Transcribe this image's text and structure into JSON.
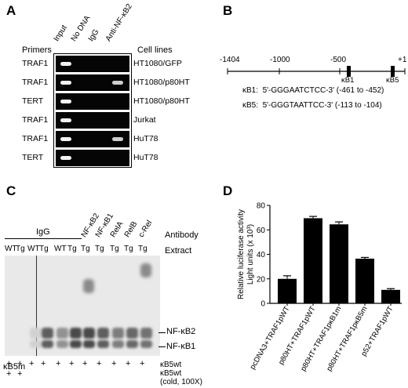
{
  "panels": {
    "A": {
      "label": "A",
      "primers_header": "Primers",
      "cell_lines_header": "Cell lines",
      "columns": [
        "Input",
        "No DNA",
        "IgG",
        "Anti-NF-κB2"
      ],
      "rows": [
        {
          "primer": "TRAF1",
          "cell_line": "HT1080/GFP",
          "bands": [
            1,
            0,
            0,
            0
          ]
        },
        {
          "primer": "TRAF1",
          "cell_line": "HT1080/p80HT",
          "bands": [
            1,
            0,
            0,
            1
          ]
        },
        {
          "primer": "TERT",
          "cell_line": "HT1080/p80HT",
          "bands": [
            1,
            0,
            0,
            0
          ]
        },
        {
          "primer": "TRAF1",
          "cell_line": "Jurkat",
          "bands": [
            1,
            0,
            0,
            0
          ]
        },
        {
          "primer": "TRAF1",
          "cell_line": "HuT78",
          "bands": [
            1,
            0,
            0,
            1
          ]
        },
        {
          "primer": "TERT",
          "cell_line": "HuT78",
          "bands": [
            1,
            0,
            0,
            0
          ]
        }
      ]
    },
    "B": {
      "label": "B",
      "ticks": [
        "-1404",
        "-1000",
        "-500",
        "+1"
      ],
      "sites": [
        "κB1",
        "κB5"
      ],
      "seq1": "κB1:  5'-GGGAATCTCC-3' (-461 to -452)",
      "seq2": "κB5:  5'-GGGTAATTCC-3' (-113 to -104)"
    },
    "C": {
      "label": "C",
      "antibody_header": "Antibody",
      "extract_header": "Extract",
      "igg_label": "IgG",
      "antibodies": [
        "NF-κB2",
        "NF-κB1",
        "RelA",
        "RelB",
        "c-Rel"
      ],
      "extracts": [
        "WT",
        "Tg",
        "WT",
        "Tg",
        "WT",
        "Tg",
        "Tg",
        "Tg",
        "Tg",
        "Tg",
        "Tg"
      ],
      "bands": [
        "NF-κB2",
        "NF-κB1"
      ],
      "row1_label": "κB5m",
      "row1_marks": [
        "+",
        "+",
        "+",
        "+",
        "+",
        "+",
        "+",
        "+",
        "+",
        "+",
        "+"
      ],
      "row1_right": "κB5wt",
      "row2_marks": [
        "+",
        "+"
      ],
      "row2_right": "κB5wt",
      "row3_right": "(cold, 100X)"
    },
    "D": {
      "label": "D"
    }
  },
  "chart_data": {
    "type": "bar",
    "categories": [
      "pcDNA3+TRAF1pWT",
      "p80HT+TRAF1pWT",
      "p80HT+TRAF1pκB1m",
      "p80HT+TRAF1pκB5m",
      "p52+TRAF1pWT"
    ],
    "values": [
      20,
      69.5,
      64.5,
      36.5,
      11
    ],
    "errors": [
      2.5,
      1.5,
      2,
      1,
      1
    ],
    "ylabel": "Relative luciferase activity\nLight units (x 10³)",
    "ylabel_line1": "Relative luciferase activity",
    "ylabel_line2": "Light units (x 10³)",
    "ylim": [
      0,
      80
    ],
    "yticks": [
      "0",
      "20",
      "40",
      "60",
      "80"
    ],
    "grid": false,
    "bar_color": "#000000"
  }
}
